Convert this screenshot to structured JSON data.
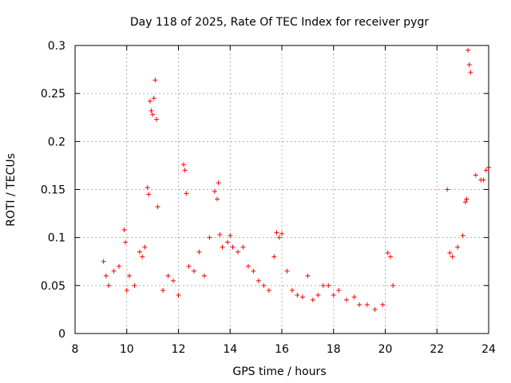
{
  "chart_data": {
    "type": "scatter",
    "title": "Day 118 of 2025, Rate Of TEC Index for receiver pygr",
    "xlabel": "GPS time / hours",
    "ylabel": "ROTI / TECUs",
    "xlim": [
      8,
      24
    ],
    "ylim": [
      0,
      0.3
    ],
    "xticks": [
      8,
      10,
      12,
      14,
      16,
      18,
      20,
      22,
      24
    ],
    "yticks": [
      0,
      0.05,
      0.1,
      0.15,
      0.2,
      0.25,
      0.3
    ],
    "xtick_labels": [
      "8",
      "10",
      "12",
      "14",
      "16",
      "18",
      "20",
      "22",
      "24"
    ],
    "ytick_labels": [
      "0",
      "0.05",
      "0.1",
      "0.15",
      "0.2",
      "0.25",
      "0.3"
    ],
    "grid": true,
    "marker": "+",
    "color": "#ff0000",
    "series": [
      {
        "x": [
          9.1,
          9.2,
          9.3,
          9.5,
          9.7,
          9.9,
          9.95,
          10.0,
          10.1,
          10.3,
          10.5,
          10.6,
          10.7,
          10.8,
          10.85,
          10.9,
          10.95,
          11.0,
          11.05,
          11.1,
          11.15,
          11.2,
          11.4,
          11.6,
          11.8,
          12.0,
          12.2,
          12.25,
          12.3,
          12.4,
          12.6,
          12.8,
          13.0,
          13.2,
          13.4,
          13.5,
          13.55,
          13.6,
          13.7,
          13.9,
          14.0,
          14.1,
          14.3,
          14.5,
          14.7,
          14.9,
          15.1,
          15.3,
          15.5,
          15.7,
          15.8,
          15.9,
          16.0,
          16.2,
          16.4,
          16.6,
          16.8,
          17.0,
          17.2,
          17.4,
          17.6,
          17.8,
          18.0,
          18.2,
          18.5,
          18.8,
          19.0,
          19.3,
          19.6,
          19.9,
          20.1,
          20.2,
          20.3,
          22.4,
          22.5,
          22.6,
          22.8,
          23.0,
          23.1,
          23.15,
          23.2,
          23.25,
          23.3,
          23.5,
          23.7,
          23.8,
          23.9,
          24.0
        ],
        "y": [
          0.075,
          0.06,
          0.05,
          0.065,
          0.07,
          0.108,
          0.095,
          0.045,
          0.06,
          0.05,
          0.085,
          0.08,
          0.09,
          0.152,
          0.145,
          0.242,
          0.232,
          0.228,
          0.245,
          0.264,
          0.223,
          0.132,
          0.045,
          0.06,
          0.055,
          0.04,
          0.176,
          0.17,
          0.146,
          0.07,
          0.065,
          0.085,
          0.06,
          0.1,
          0.148,
          0.14,
          0.157,
          0.103,
          0.09,
          0.095,
          0.102,
          0.09,
          0.085,
          0.09,
          0.07,
          0.065,
          0.055,
          0.05,
          0.045,
          0.08,
          0.105,
          0.1,
          0.104,
          0.065,
          0.045,
          0.04,
          0.038,
          0.06,
          0.035,
          0.04,
          0.05,
          0.05,
          0.04,
          0.045,
          0.035,
          0.038,
          0.03,
          0.03,
          0.025,
          0.03,
          0.084,
          0.08,
          0.05,
          0.15,
          0.084,
          0.08,
          0.09,
          0.102,
          0.137,
          0.14,
          0.295,
          0.28,
          0.272,
          0.165,
          0.16,
          0.16,
          0.17,
          0.173
        ]
      }
    ]
  }
}
